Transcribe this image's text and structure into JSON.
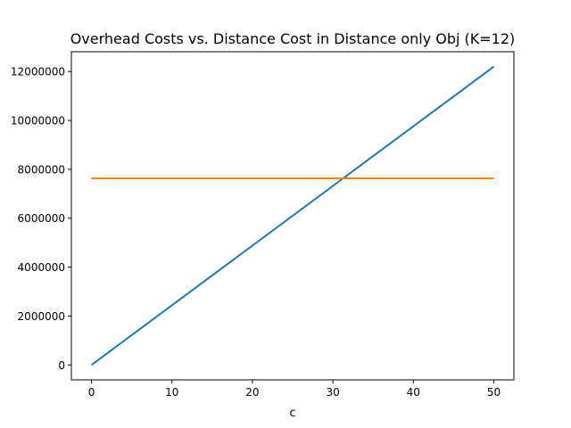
{
  "chart_data": {
    "type": "line",
    "title": "Overhead Costs vs. Distance Cost in Distance only Obj (K=12)",
    "xlabel": "c",
    "ylabel": "",
    "xlim": [
      -2.5,
      52.5
    ],
    "ylim": [
      -610000,
      12810000
    ],
    "xticks": [
      0,
      10,
      20,
      30,
      40,
      50
    ],
    "yticks": [
      0,
      2000000,
      4000000,
      6000000,
      8000000,
      10000000,
      12000000
    ],
    "xtick_labels": [
      "0",
      "10",
      "20",
      "30",
      "40",
      "50"
    ],
    "ytick_labels": [
      "0",
      "2000000",
      "4000000",
      "6000000",
      "8000000",
      "10000000",
      "12000000"
    ],
    "grid": false,
    "legend": "none",
    "series": [
      {
        "x": [
          0,
          50
        ],
        "y": [
          0,
          12200000
        ],
        "color": "#1f77b4"
      },
      {
        "x": [
          0,
          50
        ],
        "y": [
          7630000,
          7630000
        ],
        "color": "#ff7f0e"
      }
    ]
  }
}
